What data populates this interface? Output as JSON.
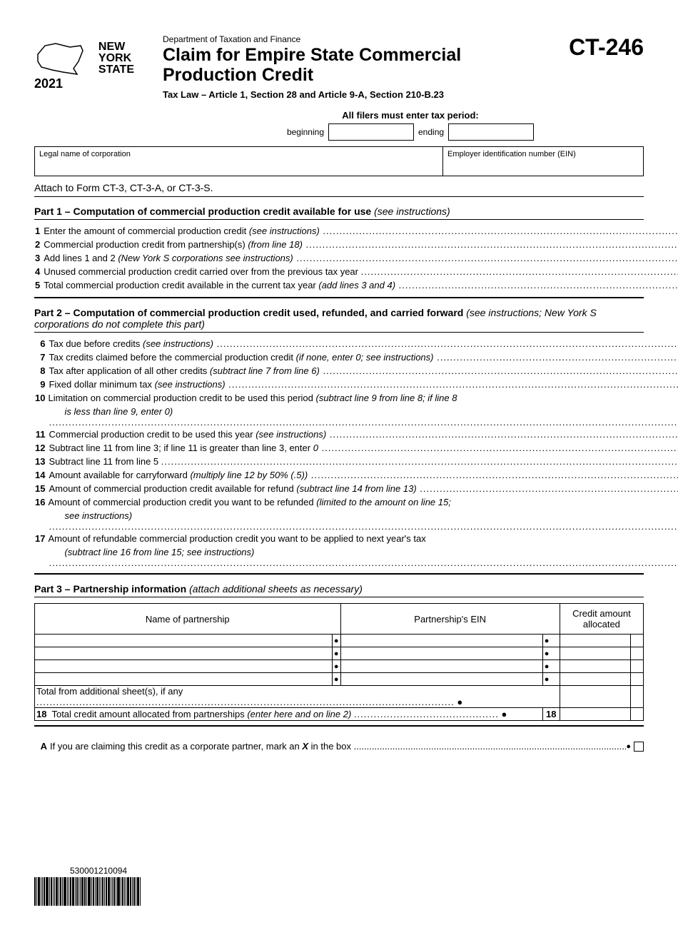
{
  "header": {
    "logo": {
      "line1": "NEW",
      "line2": "YORK",
      "line3": "STATE",
      "year": "2021"
    },
    "dept": "Department of Taxation and Finance",
    "title": "Claim for Empire State Commercial Production Credit",
    "subtitle": "Tax Law – Article 1, Section 28 and Article 9-A, Section 210-B.23",
    "form_id": "CT-246"
  },
  "tax_period": {
    "label": "All filers must enter tax period:",
    "beginning_label": "beginning",
    "ending_label": "ending"
  },
  "info": {
    "legal_name_label": "Legal name of corporation",
    "ein_label": "Employer identification number (EIN)"
  },
  "attach_note": "Attach to Form CT-3, CT-3-A, or CT-3-S.",
  "part1": {
    "title": "Part 1 – Computation of commercial production credit available for use ",
    "instr": "(see instructions)",
    "lines": [
      {
        "n": "1",
        "text": "Enter the amount of commercial production credit ",
        "it": "(see instructions)",
        "bullet": true
      },
      {
        "n": "2",
        "text": "Commercial production credit from partnership(s) ",
        "it": "(from line 18)",
        "bullet": true
      },
      {
        "n": "3",
        "text": "Add lines 1 and 2 ",
        "it": "(New York S corporations see instructions)",
        "bullet": true
      },
      {
        "n": "4",
        "text": "Unused commercial production credit carried over from the previous tax year ",
        "it": "",
        "bullet": true
      },
      {
        "n": "5",
        "text": "Total commercial production credit available in the current tax year ",
        "it": "(add lines 3 and 4)",
        "bullet": true
      }
    ]
  },
  "part2": {
    "title": "Part 2 – Computation of commercial production credit used, refunded, and carried forward ",
    "instr": "(see instructions; New York S corporations do not complete this part)",
    "lines": [
      {
        "n": "6",
        "text": "Tax due before credits ",
        "it": "(see instructions)",
        "bullet": false
      },
      {
        "n": "7",
        "text": "Tax credits claimed before the commercial production credit ",
        "it": "(if none, enter 0; see instructions)",
        "bullet": true
      },
      {
        "n": "8",
        "text": "Tax after application of all other credits ",
        "it": "(subtract line 7 from line 6)",
        "bullet": false
      },
      {
        "n": "9",
        "text": "Fixed dollar minimum tax ",
        "it": "(see instructions)",
        "bullet": false
      },
      {
        "n": "10",
        "text": "Limitation on commercial production credit to be used this period ",
        "it": "(subtract line 9 from line 8; if line 8",
        "wrap": true,
        "cont": "is less than line 9, enter 0)",
        "bullet": true
      },
      {
        "n": "11",
        "text": "Commercial production credit to be used this year ",
        "it": "(see instructions)",
        "bullet": true
      },
      {
        "n": "12",
        "text": "Subtract line 11 from line 3; if line 11 is greater than line 3, enter ",
        "it": "0",
        "bullet": true
      },
      {
        "n": "13",
        "text": "Subtract line 11 from line 5 ",
        "it": "",
        "bullet": true
      },
      {
        "n": "14",
        "text": "Amount available for carryforward ",
        "it": "(multiply line 12 by 50% (.5))",
        "bullet": true
      },
      {
        "n": "15",
        "text": "Amount of commercial production credit available for refund ",
        "it": "(subtract line 14 from line 13)",
        "bullet": true
      },
      {
        "n": "16",
        "text": "Amount of commercial production credit you want to be refunded ",
        "it": "(limited to the amount on line 15;",
        "wrap": true,
        "cont": "see instructions)",
        "bullet": true
      },
      {
        "n": "17",
        "text": "Amount of refundable commercial production credit you want to be applied to next year's tax",
        "it": "",
        "wrap": true,
        "cont": "(subtract line 16 from line 15; see instructions)",
        "bullet": true
      }
    ]
  },
  "part3": {
    "title": "Part 3 – Partnership information ",
    "instr": "(attach additional sheets as necessary)",
    "cols": [
      "Name of partnership",
      "Partnership's EIN",
      "Credit amount allocated"
    ],
    "total_label": "Total from additional sheet(s), if any ",
    "line18": {
      "n": "18",
      "text": "Total credit amount allocated from partnerships ",
      "it": "(enter here and on line 2)"
    }
  },
  "lineA": {
    "label": "A",
    "text": "If you are claiming this credit as a corporate partner, mark an ",
    "x": "X",
    "text2": " in the box "
  },
  "barcode_num": "530001210094"
}
